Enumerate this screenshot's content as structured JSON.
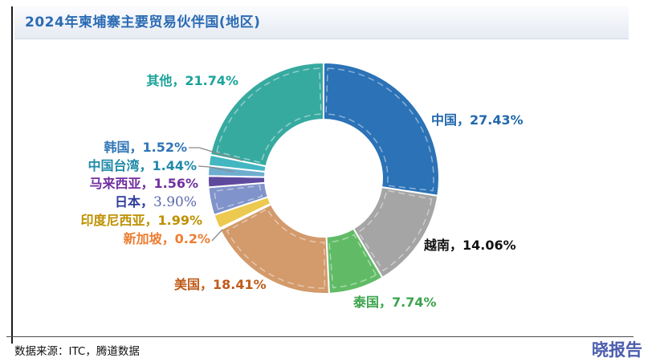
{
  "title": "2024年柬埔寨主要贸易伙伴国(地区)",
  "theme": {
    "title_color": "#2b6cb4",
    "frame_line_color": "#1c1c1c"
  },
  "footer": {
    "source": "数据来源：ITC，腾道数据",
    "brand": "晓报告",
    "brand_color": "#4c5dad"
  },
  "chart_data": {
    "type": "pie",
    "subtype": "donut",
    "title": "2024年柬埔寨主要贸易伙伴国(地区)",
    "unit": "%",
    "direction": "clockwise",
    "start_angle_deg": 0,
    "donut_hole_ratio": 0.51,
    "legend": "none",
    "labels_on_chart": true,
    "slices": [
      {
        "id": "china",
        "name": "中国",
        "value": 27.43,
        "value_text": "27.43%",
        "separator": "，",
        "label_text": "中国，27.43%",
        "color": "#2b72b6",
        "label_color": "#2268ad"
      },
      {
        "id": "vietnam",
        "name": "越南",
        "value": 14.06,
        "value_text": "14.06%",
        "separator": "，",
        "label_text": "越南，14.06%",
        "color": "#a5a5a5",
        "label_color": "#111111"
      },
      {
        "id": "thailand",
        "name": "泰国",
        "value": 7.74,
        "value_text": "7.74%",
        "separator": "，",
        "label_text": "泰国，7.74%",
        "color": "#61bb66",
        "label_color": "#3ba44c"
      },
      {
        "id": "usa",
        "name": "美国",
        "value": 18.41,
        "value_text": "18.41%",
        "separator": "，",
        "label_text": "美国，18.41%",
        "color": "#d39a6b",
        "label_color": "#c05a18"
      },
      {
        "id": "singapore",
        "name": "新加坡",
        "value": 0.2,
        "value_text": "0.2%",
        "separator": "，",
        "label_text": "新加坡，0.2%",
        "color": "#e9882e",
        "label_color": "#ed7d31"
      },
      {
        "id": "indonesia",
        "name": "印度尼西亚",
        "value": 1.99,
        "value_text": "1.99%",
        "separator": "，",
        "label_text": "印度尼西亚，1.99%",
        "color": "#ecc94f",
        "label_color": "#bf9000"
      },
      {
        "id": "japan",
        "name": "日本",
        "value": 3.9,
        "value_text": "3.90%",
        "separator": "，",
        "label_text": "日本，3.90%",
        "color": "#8093ca",
        "label_color": "#2e3a9c",
        "value_color": "#5b68ae"
      },
      {
        "id": "malaysia",
        "name": "马来西亚",
        "value": 1.56,
        "value_text": "1.56%",
        "separator": "，",
        "label_text": "马来西亚，1.56%",
        "color": "#5e4a9d",
        "label_color": "#7030a0"
      },
      {
        "id": "taiwan",
        "name": "中国台湾",
        "value": 1.44,
        "value_text": "1.44%",
        "separator": "，",
        "label_text": "中国台湾，1.44%",
        "color": "#6fadcf",
        "label_color": "#1f8aa8"
      },
      {
        "id": "korea",
        "name": "韩国",
        "value": 1.52,
        "value_text": "1.52%",
        "separator": "，",
        "label_text": "韩国，1.52%",
        "color": "#42b7c1",
        "label_color": "#2e75b6"
      },
      {
        "id": "others",
        "name": "其他",
        "value": 21.74,
        "value_text": "21.74%",
        "separator": "，",
        "label_text": "其他，21.74%",
        "color": "#37aaa0",
        "label_color": "#1ba39a"
      }
    ]
  }
}
